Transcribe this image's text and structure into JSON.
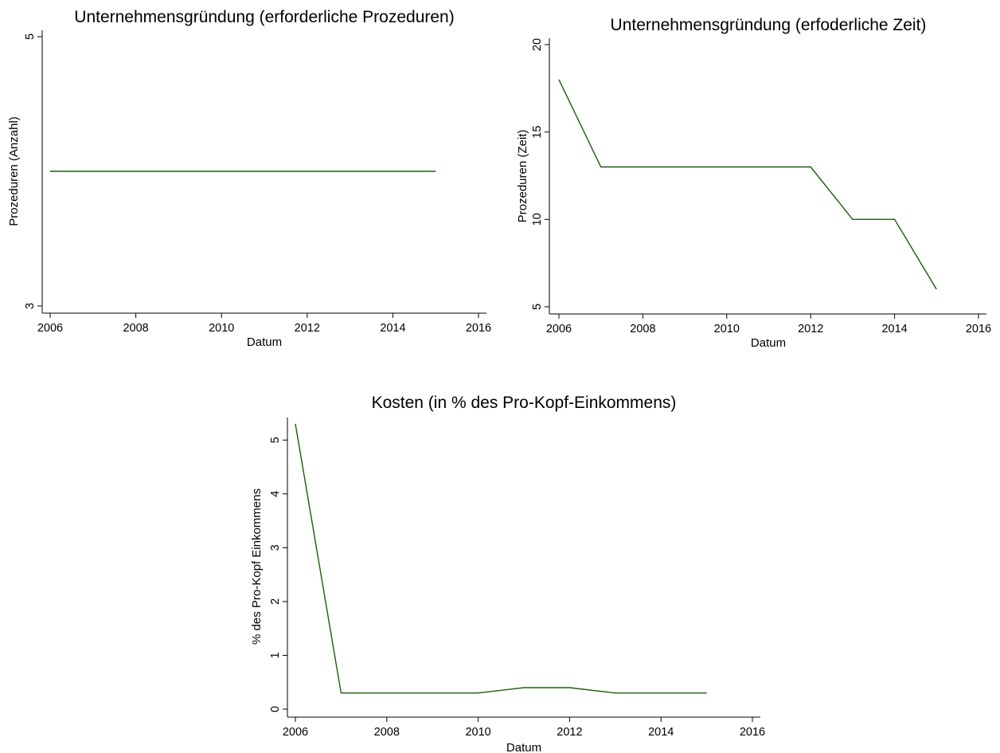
{
  "colors": {
    "series": "#1a5e0a",
    "axis": "#000000",
    "background": "#ffffff"
  },
  "chart_data": [
    {
      "type": "line",
      "title": "Unternehmensgründung (erforderliche Prozeduren)",
      "xlabel": "Datum",
      "ylabel": "Prozeduren (Anzahl)",
      "xlim": [
        2006,
        2016
      ],
      "ylim": [
        3,
        5
      ],
      "xticks": [
        2006,
        2008,
        2010,
        2012,
        2014,
        2016
      ],
      "yticks": [
        3,
        5
      ],
      "grid": false,
      "x": [
        2006,
        2007,
        2008,
        2009,
        2010,
        2011,
        2012,
        2013,
        2014,
        2015
      ],
      "series": [
        {
          "values": [
            4,
            4,
            4,
            4,
            4,
            4,
            4,
            4,
            4,
            4
          ]
        }
      ]
    },
    {
      "type": "line",
      "title": "Unternehmensgründung (erfoderliche Zeit)",
      "xlabel": "Datum",
      "ylabel": "Prozeduren (Zeit)",
      "xlim": [
        2006,
        2016
      ],
      "ylim": [
        5,
        20
      ],
      "xticks": [
        2006,
        2008,
        2010,
        2012,
        2014,
        2016
      ],
      "yticks": [
        5,
        10,
        15,
        20
      ],
      "grid": false,
      "x": [
        2006,
        2007,
        2008,
        2009,
        2010,
        2011,
        2012,
        2013,
        2014,
        2015
      ],
      "series": [
        {
          "values": [
            18,
            13,
            13,
            13,
            13,
            13,
            13,
            10,
            10,
            6
          ]
        }
      ]
    },
    {
      "type": "line",
      "title": "Kosten (in % des Pro-Kopf-Einkommens)",
      "xlabel": "Datum",
      "ylabel": "% des Pro-Kopf Einkommens",
      "xlim": [
        2006,
        2016
      ],
      "ylim": [
        0,
        5.3
      ],
      "xticks": [
        2006,
        2008,
        2010,
        2012,
        2014,
        2016
      ],
      "yticks": [
        0,
        1,
        2,
        3,
        4,
        5
      ],
      "grid": false,
      "x": [
        2006,
        2007,
        2008,
        2009,
        2010,
        2011,
        2012,
        2013,
        2014,
        2015
      ],
      "series": [
        {
          "values": [
            5.3,
            0.3,
            0.3,
            0.3,
            0.3,
            0.4,
            0.4,
            0.3,
            0.3,
            0.3
          ]
        }
      ]
    }
  ]
}
